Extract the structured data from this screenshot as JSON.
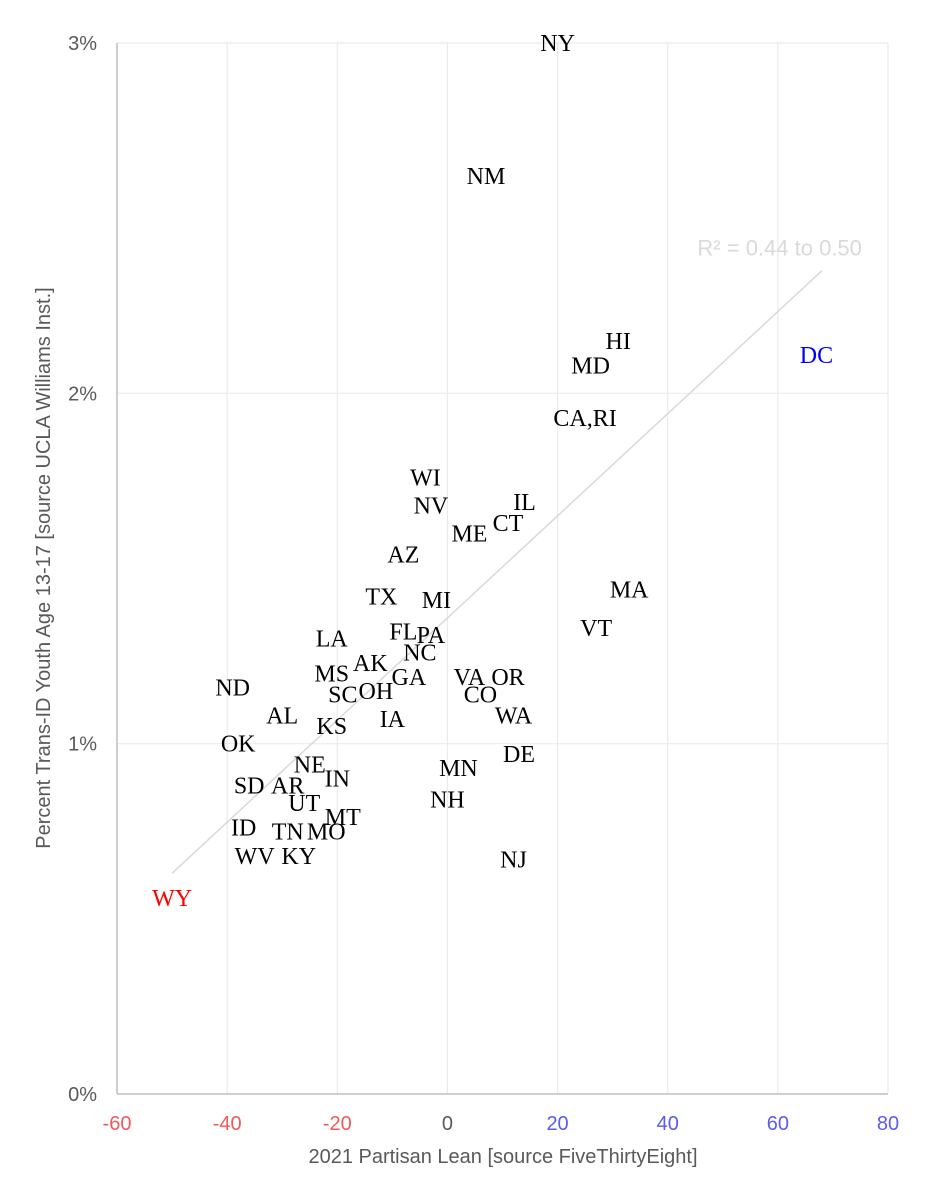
{
  "chart_data": {
    "type": "scatter",
    "title": "",
    "xlabel": "2021 Partisan Lean [source FiveThirtyEight]",
    "ylabel": "Percent Trans-ID Youth Age 13-17 [source UCLA Williams Inst.]",
    "xlim": [
      -60,
      80
    ],
    "ylim": [
      0,
      3
    ],
    "x_ticks": [
      -60,
      -40,
      -20,
      0,
      20,
      40,
      60,
      80
    ],
    "x_tick_labels": [
      "-60",
      "-40",
      "-20",
      "0",
      "20",
      "40",
      "60",
      "80"
    ],
    "y_ticks": [
      0,
      1,
      2,
      3
    ],
    "y_tick_labels": [
      "0%",
      "1%",
      "2%",
      "3%"
    ],
    "grid": true,
    "colors": {
      "default": "#000000",
      "red": "#ff0000",
      "blue": "#0000ff",
      "negative_tick": "#f15a5a",
      "positive_tick": "#5b5bf0",
      "neutral_tick": "#595959",
      "grid": "#ebebeb",
      "trendline": "#d9d9d9"
    },
    "trendline": {
      "x": [
        -50,
        68
      ],
      "y": [
        0.63,
        2.35
      ],
      "label": "R² = 0.44 to 0.50"
    },
    "points": [
      {
        "label": "NY",
        "x": 20,
        "y": 3.0
      },
      {
        "label": "NM",
        "x": 7,
        "y": 2.62
      },
      {
        "label": "HI",
        "x": 31,
        "y": 2.15
      },
      {
        "label": "MD",
        "x": 26,
        "y": 2.08
      },
      {
        "label": "DC",
        "x": 67,
        "y": 2.11,
        "color": "blue"
      },
      {
        "label": "CA,RI",
        "x": 25,
        "y": 1.93
      },
      {
        "label": "WI",
        "x": -4,
        "y": 1.76
      },
      {
        "label": "NV",
        "x": -3,
        "y": 1.68
      },
      {
        "label": "IL",
        "x": 14,
        "y": 1.69
      },
      {
        "label": "CT",
        "x": 11,
        "y": 1.63
      },
      {
        "label": "ME",
        "x": 4,
        "y": 1.6
      },
      {
        "label": "AZ",
        "x": -8,
        "y": 1.54
      },
      {
        "label": "MA",
        "x": 33,
        "y": 1.44
      },
      {
        "label": "TX",
        "x": -12,
        "y": 1.42
      },
      {
        "label": "MI",
        "x": -2,
        "y": 1.41
      },
      {
        "label": "VT",
        "x": 27,
        "y": 1.33
      },
      {
        "label": "FL",
        "x": -8,
        "y": 1.32
      },
      {
        "label": "PA",
        "x": -3,
        "y": 1.31
      },
      {
        "label": "LA",
        "x": -21,
        "y": 1.3
      },
      {
        "label": "NC",
        "x": -5,
        "y": 1.26
      },
      {
        "label": "AK",
        "x": -14,
        "y": 1.23
      },
      {
        "label": "MS",
        "x": -21,
        "y": 1.2
      },
      {
        "label": "GA",
        "x": -7,
        "y": 1.19
      },
      {
        "label": "VA",
        "x": 4,
        "y": 1.19
      },
      {
        "label": "OR",
        "x": 11,
        "y": 1.19
      },
      {
        "label": "SC",
        "x": -19,
        "y": 1.14
      },
      {
        "label": "OH",
        "x": -13,
        "y": 1.15
      },
      {
        "label": "CO",
        "x": 6,
        "y": 1.14
      },
      {
        "label": "ND",
        "x": -39,
        "y": 1.16
      },
      {
        "label": "AL",
        "x": -30,
        "y": 1.08
      },
      {
        "label": "WA",
        "x": 12,
        "y": 1.08
      },
      {
        "label": "IA",
        "x": -10,
        "y": 1.07
      },
      {
        "label": "KS",
        "x": -21,
        "y": 1.05
      },
      {
        "label": "OK",
        "x": -38,
        "y": 1.0
      },
      {
        "label": "DE",
        "x": 13,
        "y": 0.97
      },
      {
        "label": "NE",
        "x": -25,
        "y": 0.94
      },
      {
        "label": "MN",
        "x": 2,
        "y": 0.93
      },
      {
        "label": "IN",
        "x": -20,
        "y": 0.9
      },
      {
        "label": "SD",
        "x": -36,
        "y": 0.88
      },
      {
        "label": "AR",
        "x": -29,
        "y": 0.88
      },
      {
        "label": "NH",
        "x": 0,
        "y": 0.84
      },
      {
        "label": "UT",
        "x": -26,
        "y": 0.83
      },
      {
        "label": "MT",
        "x": -19,
        "y": 0.79
      },
      {
        "label": "ID",
        "x": -37,
        "y": 0.76
      },
      {
        "label": "TN",
        "x": -29,
        "y": 0.75
      },
      {
        "label": "MO",
        "x": -22,
        "y": 0.75
      },
      {
        "label": "WV",
        "x": -35,
        "y": 0.68
      },
      {
        "label": "KY",
        "x": -27,
        "y": 0.68
      },
      {
        "label": "NJ",
        "x": 12,
        "y": 0.67
      },
      {
        "label": "WY",
        "x": -50,
        "y": 0.56,
        "color": "red"
      }
    ]
  }
}
